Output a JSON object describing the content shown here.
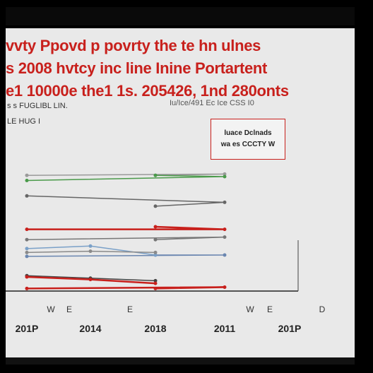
{
  "header": {
    "title_lines": [
      "vvty Ppovd p povrty the te hn ulnes",
      "s 2008 hvtcy inc line Inine Portartent",
      "e1 10000e the1 1s. 205426, 1nd 280onts"
    ],
    "subtitle_lines": [
      "s s FUGLIBL LIN.",
      "LE HUG I"
    ],
    "source_note": "Iu/Ice/491 Ec Ice CSS I0",
    "legend_lines": [
      "luace Dclnads",
      "wa es CCCTY W"
    ]
  },
  "chart_data": {
    "type": "line",
    "title": "vvty Ppovd p povrty the te hn ulnes",
    "xlabel": "",
    "ylabel": "",
    "x_tick_labels": [
      "201P",
      "2014",
      "2018",
      "2011",
      "201P"
    ],
    "extra_marks": [
      "W",
      "E",
      "E",
      "W",
      "E",
      "D"
    ],
    "grid": false,
    "legend_position": "top-right",
    "ylim": [
      0,
      100
    ],
    "series": [
      {
        "color": "#9a9a9a",
        "x": [
          "2018",
          "2011",
          "201P"
        ],
        "y": [
          90,
          91,
          90
        ]
      },
      {
        "color": "#4a9a4a",
        "x": [
          "2018",
          "2011",
          "201P"
        ],
        "y": [
          90,
          89,
          86
        ]
      },
      {
        "color": "#666666",
        "x": [
          "2018",
          "2011",
          "201P"
        ],
        "y": [
          66,
          69,
          74
        ]
      },
      {
        "color": "#c8201c",
        "x": [
          "2018",
          "2011",
          "201P"
        ],
        "y": [
          50,
          48,
          48
        ]
      },
      {
        "color": "#777777",
        "x": [
          "2018",
          "2011",
          "201P"
        ],
        "y": [
          40,
          42,
          40
        ]
      },
      {
        "color": "#6a86b0",
        "x": [
          "2018",
          "2011",
          "201P"
        ],
        "y": [
          28,
          28,
          27
        ]
      },
      {
        "color": "#7aa0c8",
        "x": [
          "201P",
          "2014",
          "2018"
        ],
        "y": [
          33,
          35,
          28
        ]
      },
      {
        "color": "#8a8a8a",
        "x": [
          "201P",
          "2014",
          "2018"
        ],
        "y": [
          30,
          31,
          30
        ]
      },
      {
        "color": "#444444",
        "x": [
          "201P",
          "2014",
          "2018"
        ],
        "y": [
          12,
          10,
          8
        ]
      },
      {
        "color": "#c8201c",
        "x": [
          "201P",
          "2014",
          "2018"
        ],
        "y": [
          11,
          9,
          6
        ]
      },
      {
        "color": "#c8201c",
        "x": [
          "2018",
          "2011",
          "201P"
        ],
        "y": [
          2,
          3,
          2
        ]
      }
    ]
  }
}
